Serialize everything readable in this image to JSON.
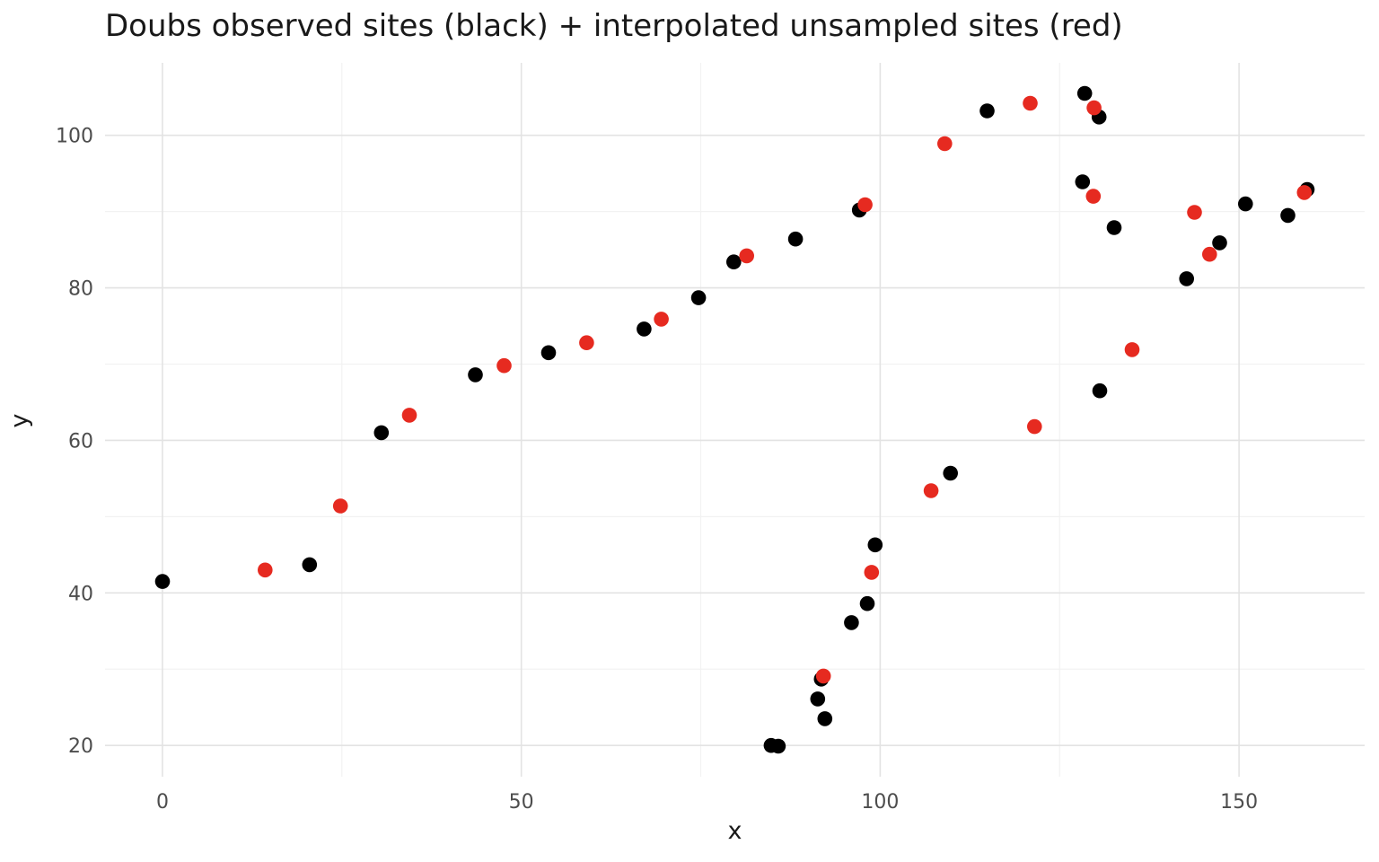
{
  "chart_data": {
    "type": "scatter",
    "title": "Doubs observed sites (black) + interpolated unsampled sites (red)",
    "xlabel": "x",
    "ylabel": "y",
    "xlim": [
      -8,
      167.5
    ],
    "ylim": [
      15.9,
      109.5
    ],
    "x_major_ticks": [
      0,
      50,
      100,
      150
    ],
    "x_minor_ticks": [
      25,
      75,
      125
    ],
    "y_major_ticks": [
      20,
      40,
      60,
      80,
      100
    ],
    "y_minor_ticks": [
      30,
      50,
      70,
      90
    ],
    "grid": "major+minor",
    "legend_position": "none",
    "colors": {
      "observed": "#000000",
      "interpolated": "#e62a20",
      "grid_major": "#e3e3e3",
      "grid_minor": "#f2f2f2",
      "tick_label": "#4d4d4d",
      "axis_title": "#1a1a1a",
      "title": "#191919",
      "background": "#ffffff"
    },
    "series": [
      {
        "name": "observed sites",
        "color_key": "observed",
        "marker": "circle",
        "points": [
          [
            0.0,
            41.5
          ],
          [
            20.5,
            43.7
          ],
          [
            30.5,
            61.0
          ],
          [
            43.6,
            68.6
          ],
          [
            53.8,
            71.5
          ],
          [
            67.1,
            74.6
          ],
          [
            74.7,
            78.7
          ],
          [
            79.6,
            83.4
          ],
          [
            88.2,
            86.4
          ],
          [
            97.1,
            90.2
          ],
          [
            114.9,
            103.2
          ],
          [
            128.5,
            105.5
          ],
          [
            130.5,
            102.4
          ],
          [
            128.2,
            93.9
          ],
          [
            132.6,
            87.9
          ],
          [
            142.7,
            81.2
          ],
          [
            147.3,
            85.9
          ],
          [
            150.9,
            91.0
          ],
          [
            156.8,
            89.5
          ],
          [
            159.5,
            92.9
          ],
          [
            130.6,
            66.5
          ],
          [
            109.8,
            55.7
          ],
          [
            99.3,
            46.3
          ],
          [
            98.2,
            38.6
          ],
          [
            96.0,
            36.1
          ],
          [
            91.8,
            28.7
          ],
          [
            91.3,
            26.1
          ],
          [
            92.3,
            23.5
          ],
          [
            85.8,
            19.9
          ],
          [
            84.8,
            20.0
          ]
        ]
      },
      {
        "name": "interpolated unsampled sites",
        "color_key": "interpolated",
        "marker": "circle",
        "points": [
          [
            14.3,
            43.0
          ],
          [
            24.8,
            51.4
          ],
          [
            34.4,
            63.3
          ],
          [
            47.6,
            69.8
          ],
          [
            59.1,
            72.8
          ],
          [
            69.5,
            75.9
          ],
          [
            81.4,
            84.2
          ],
          [
            97.9,
            90.9
          ],
          [
            109.0,
            98.9
          ],
          [
            120.9,
            104.2
          ],
          [
            129.8,
            103.6
          ],
          [
            129.7,
            92.0
          ],
          [
            135.1,
            71.9
          ],
          [
            121.5,
            61.8
          ],
          [
            107.1,
            53.4
          ],
          [
            98.8,
            42.7
          ],
          [
            92.1,
            29.1
          ],
          [
            143.8,
            89.9
          ],
          [
            145.9,
            84.4
          ],
          [
            159.1,
            92.5
          ]
        ]
      }
    ]
  }
}
